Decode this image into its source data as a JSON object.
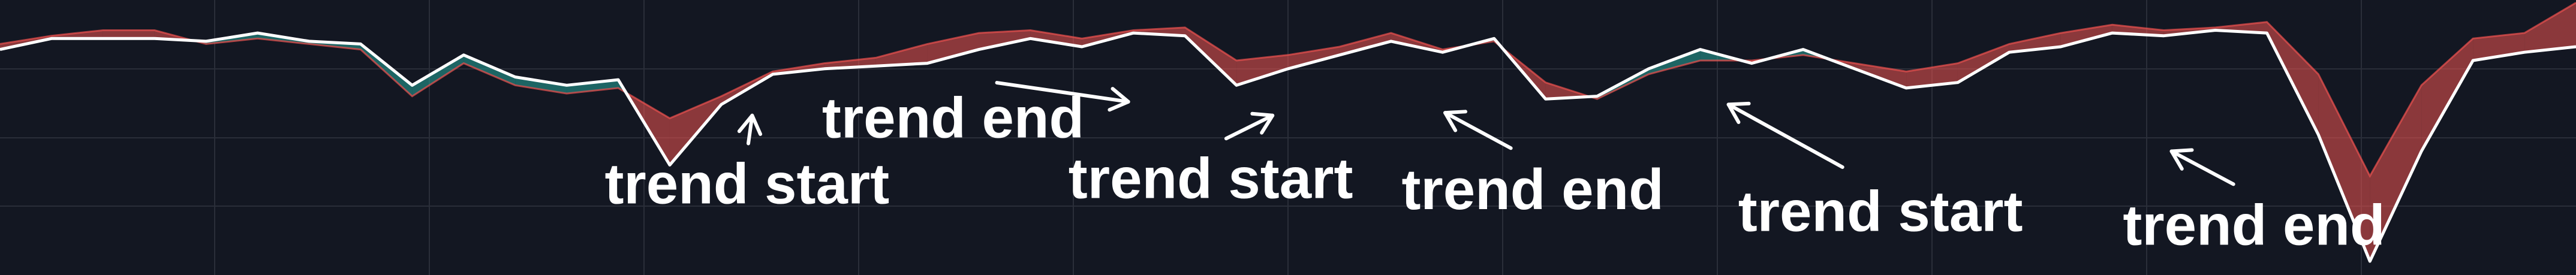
{
  "chart_data": {
    "type": "area",
    "title": "",
    "xlabel": "",
    "ylabel": "",
    "grid": true,
    "x": [
      0,
      2,
      4,
      6,
      8,
      10,
      12,
      14,
      16,
      18,
      20,
      22,
      24,
      26,
      28,
      30,
      32,
      34,
      36,
      38,
      40,
      42,
      44,
      46,
      48,
      50,
      52,
      54,
      56,
      58,
      60,
      62,
      64,
      66,
      68,
      70,
      72,
      74,
      76,
      78,
      80,
      82,
      84,
      86,
      88,
      90,
      92,
      94,
      96,
      98,
      100
    ],
    "xlim": [
      0,
      100
    ],
    "ylim": [
      0,
      10
    ],
    "series": [
      {
        "values": [
          8.2,
          8.6,
          8.6,
          8.6,
          8.5,
          8.8,
          8.5,
          8.4,
          6.9,
          8.0,
          7.2,
          6.9,
          7.1,
          4.0,
          6.2,
          7.3,
          7.5,
          7.6,
          7.7,
          8.2,
          8.6,
          8.3,
          8.8,
          8.7,
          6.9,
          7.5,
          8.0,
          8.5,
          8.1,
          8.6,
          6.4,
          6.5,
          7.5,
          8.2,
          7.7,
          8.2,
          7.5,
          6.8,
          7.0,
          8.1,
          8.3,
          8.8,
          8.7,
          8.9,
          8.8,
          5.1,
          0.5,
          4.5,
          7.8,
          8.1,
          8.3
        ]
      },
      {
        "values": [
          8.4,
          8.7,
          8.9,
          8.9,
          8.4,
          8.6,
          8.4,
          8.2,
          6.5,
          7.7,
          6.9,
          6.6,
          6.8,
          5.7,
          6.5,
          7.4,
          7.7,
          7.9,
          8.4,
          8.8,
          8.9,
          8.6,
          8.9,
          9.0,
          7.8,
          8.0,
          8.3,
          8.8,
          8.2,
          8.5,
          7.0,
          6.4,
          7.3,
          7.8,
          7.8,
          8.0,
          7.7,
          7.4,
          7.7,
          8.4,
          8.8,
          9.1,
          8.9,
          9.0,
          9.2,
          7.3,
          3.6,
          6.9,
          8.6,
          8.8,
          9.9
        ]
      }
    ],
    "annotations": [
      {
        "text": "trend start",
        "x": 29,
        "y": 2.6,
        "arrow_to": [
          29.2,
          5.8
        ]
      },
      {
        "text": "trend end",
        "x": 37,
        "y": 5.0,
        "arrow_to": [
          43.8,
          6.3
        ]
      },
      {
        "text": "trend start",
        "x": 47,
        "y": 2.8,
        "arrow_to": [
          49.4,
          5.8
        ]
      },
      {
        "text": "trend end",
        "x": 59.5,
        "y": 2.4,
        "arrow_to": [
          56.1,
          5.9
        ]
      },
      {
        "text": "trend start",
        "x": 73,
        "y": 1.6,
        "arrow_to": [
          67.1,
          6.2
        ]
      },
      {
        "text": "trend end",
        "x": 87.5,
        "y": 1.1,
        "arrow_to": [
          84.3,
          4.5
        ]
      }
    ]
  }
}
